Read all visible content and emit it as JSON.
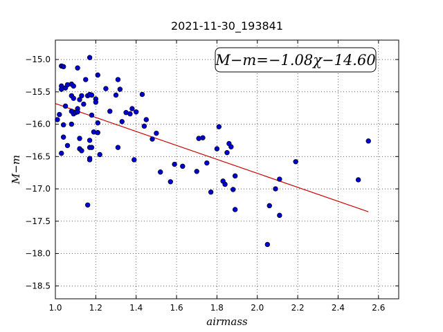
{
  "chart_data": {
    "type": "scatter",
    "title": "2021-11-30_193841",
    "xlabel": "airmass",
    "ylabel": "M−m",
    "annotation": "M−m=−1.08χ−14.60",
    "xlim": [
      1.0,
      2.7
    ],
    "ylim": [
      -18.7,
      -14.7
    ],
    "y_inverted": true,
    "grid": true,
    "xticks": [
      "1.0",
      "1.2",
      "1.4",
      "1.6",
      "1.8",
      "2.0",
      "2.2",
      "2.4",
      "2.6"
    ],
    "yticks": [
      "−15.0",
      "−15.5",
      "−16.0",
      "−16.5",
      "−17.0",
      "−17.5",
      "−18.0",
      "−18.5"
    ],
    "fit": {
      "slope": -1.08,
      "intercept": -14.6,
      "x_range": [
        1.0,
        2.55
      ],
      "color": "#cc0000"
    },
    "point_color": "#0000cc",
    "points": [
      [
        1.01,
        -15.93
      ],
      [
        1.02,
        -15.85
      ],
      [
        1.03,
        -15.41
      ],
      [
        1.03,
        -15.1
      ],
      [
        1.04,
        -15.11
      ],
      [
        1.05,
        -15.44
      ],
      [
        1.06,
        -15.39
      ],
      [
        1.03,
        -15.46
      ],
      [
        1.04,
        -16.2
      ],
      [
        1.03,
        -16.45
      ],
      [
        1.04,
        -16.01
      ],
      [
        1.05,
        -15.72
      ],
      [
        1.06,
        -16.33
      ],
      [
        1.08,
        -15.38
      ],
      [
        1.09,
        -15.41
      ],
      [
        1.08,
        -15.56
      ],
      [
        1.09,
        -15.6
      ],
      [
        1.08,
        -15.8
      ],
      [
        1.09,
        -15.84
      ],
      [
        1.1,
        -15.82
      ],
      [
        1.11,
        -15.76
      ],
      [
        1.11,
        -15.81
      ],
      [
        1.08,
        -16.0
      ],
      [
        1.11,
        -15.13
      ],
      [
        1.12,
        -15.62
      ],
      [
        1.13,
        -15.56
      ],
      [
        1.14,
        -15.69
      ],
      [
        1.12,
        -16.22
      ],
      [
        1.12,
        -16.38
      ],
      [
        1.13,
        -16.41
      ],
      [
        1.15,
        -15.31
      ],
      [
        1.16,
        -15.56
      ],
      [
        1.17,
        -15.54
      ],
      [
        1.18,
        -15.55
      ],
      [
        1.17,
        -14.97
      ],
      [
        1.17,
        -16.36
      ],
      [
        1.18,
        -16.36
      ],
      [
        1.17,
        -16.25
      ],
      [
        1.17,
        -16.53
      ],
      [
        1.17,
        -16.55
      ],
      [
        1.16,
        -17.25
      ],
      [
        1.18,
        -15.86
      ],
      [
        1.19,
        -16.12
      ],
      [
        1.2,
        -15.61
      ],
      [
        1.21,
        -15.24
      ],
      [
        1.21,
        -16.13
      ],
      [
        1.21,
        -15.98
      ],
      [
        1.22,
        -16.47
      ],
      [
        1.2,
        -15.66
      ],
      [
        1.25,
        -15.45
      ],
      [
        1.27,
        -15.8
      ],
      [
        1.3,
        -15.55
      ],
      [
        1.31,
        -15.31
      ],
      [
        1.32,
        -15.46
      ],
      [
        1.31,
        -16.36
      ],
      [
        1.33,
        -15.96
      ],
      [
        1.35,
        -15.82
      ],
      [
        1.37,
        -15.84
      ],
      [
        1.38,
        -15.76
      ],
      [
        1.39,
        -16.55
      ],
      [
        1.4,
        -15.81
      ],
      [
        1.43,
        -15.54
      ],
      [
        1.44,
        -16.03
      ],
      [
        1.45,
        -15.93
      ],
      [
        1.48,
        -16.23
      ],
      [
        1.5,
        -16.14
      ],
      [
        1.52,
        -16.74
      ],
      [
        1.57,
        -16.89
      ],
      [
        1.59,
        -16.62
      ],
      [
        1.63,
        -16.65
      ],
      [
        1.7,
        -16.73
      ],
      [
        1.71,
        -16.22
      ],
      [
        1.73,
        -16.21
      ],
      [
        1.75,
        -16.6
      ],
      [
        1.77,
        -17.05
      ],
      [
        1.8,
        -16.38
      ],
      [
        1.81,
        -16.04
      ],
      [
        1.83,
        -16.88
      ],
      [
        1.84,
        -16.93
      ],
      [
        1.85,
        -16.44
      ],
      [
        1.86,
        -16.3
      ],
      [
        1.87,
        -16.35
      ],
      [
        1.88,
        -17.01
      ],
      [
        1.89,
        -17.32
      ],
      [
        1.89,
        -16.8
      ],
      [
        2.05,
        -17.86
      ],
      [
        2.06,
        -17.26
      ],
      [
        2.09,
        -17.0
      ],
      [
        2.11,
        -16.85
      ],
      [
        2.11,
        -17.41
      ],
      [
        2.19,
        -16.58
      ],
      [
        2.5,
        -16.86
      ],
      [
        2.55,
        -16.26
      ]
    ]
  }
}
